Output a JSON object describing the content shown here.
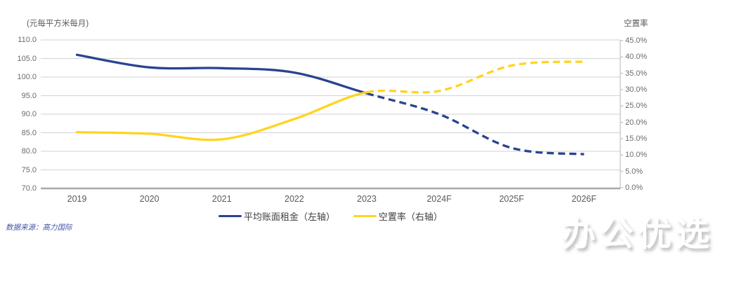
{
  "chart_data": {
    "type": "line",
    "categories": [
      "2019",
      "2020",
      "2021",
      "2022",
      "2023",
      "2024F",
      "2025F",
      "2026F"
    ],
    "series": [
      {
        "name": "平均账面租金（左轴）",
        "axis": "left",
        "color": "#2a4390",
        "solid_through_index": 4,
        "forecast_style": "dashed",
        "values": [
          106.0,
          102.6,
          102.4,
          101.2,
          95.6,
          90.0,
          80.9,
          79.2
        ]
      },
      {
        "name": "空置率（右轴）",
        "axis": "right",
        "color": "#ffd41e",
        "solid_through_index": 4,
        "forecast_style": "dashed",
        "values": [
          17.0,
          16.5,
          14.8,
          21.0,
          29.2,
          29.6,
          37.4,
          38.6
        ]
      }
    ],
    "left_axis": {
      "title": "(元每平方米每月)",
      "min": 70,
      "max": 110,
      "step": 5,
      "tick_labels": [
        "110.0",
        "105.0",
        "100.0",
        "95.0",
        "90.0",
        "85.0",
        "80.0",
        "75.0",
        "70.0"
      ]
    },
    "right_axis": {
      "title": "空置率",
      "min": 0,
      "max": 45,
      "step": 5,
      "tick_labels": [
        "45.0%",
        "40.0%",
        "35.0%",
        "30.0%",
        "25.0%",
        "20.0%",
        "15.0%",
        "10.0%",
        "5.0%",
        "0.0%"
      ]
    },
    "grid": true,
    "legend_position": "bottom-center"
  },
  "source": {
    "text": "数据来源：高力国际"
  },
  "watermark": {
    "text": "办公优选"
  },
  "colors": {
    "grid": "#d9d9d9",
    "bottom_axis": "#a8a8a8",
    "right_border": "#c0c0c0",
    "tick_text": "#6b6b6b",
    "rent_line": "#2a4390",
    "vacancy_line": "#ffd41e"
  }
}
